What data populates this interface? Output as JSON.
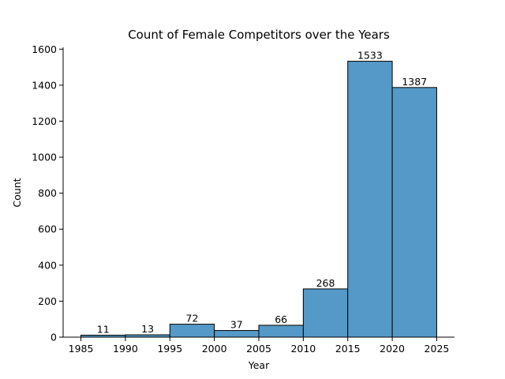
{
  "chart_data": {
    "type": "bar",
    "title": "Count of Female Competitors over the Years",
    "xlabel": "Year",
    "ylabel": "Count",
    "bin_edges": [
      1985,
      1990,
      1995,
      2000,
      2005,
      2010,
      2015,
      2020,
      2025
    ],
    "values": [
      11,
      13,
      72,
      37,
      66,
      268,
      1533,
      1387
    ],
    "x_ticks": [
      1985,
      1990,
      1995,
      2000,
      2005,
      2010,
      2015,
      2020,
      2025
    ],
    "y_ticks": [
      0,
      200,
      400,
      600,
      800,
      1000,
      1200,
      1400,
      1600
    ],
    "xlim": [
      1983,
      2027
    ],
    "ylim": [
      0,
      1610
    ],
    "bar_color": "#5499c7",
    "edge_color": "#000000",
    "grid": false,
    "legend": "none"
  }
}
